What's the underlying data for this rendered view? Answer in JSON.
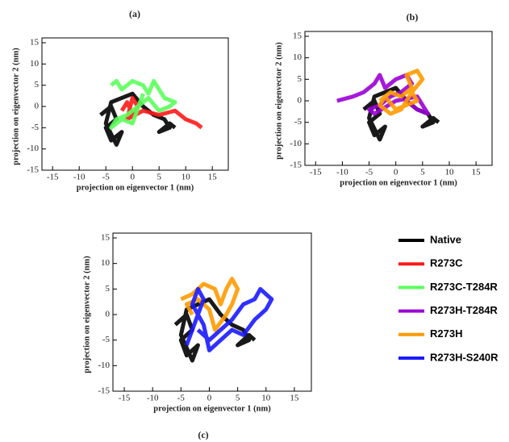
{
  "chart_data": [
    {
      "type": "line",
      "title": "(a)",
      "xlabel": "projection on eigenvector 1 (nm)",
      "ylabel": "projection on eigenvector 2 (nm)",
      "xlim": [
        -17,
        18
      ],
      "ylim": [
        -15,
        15
      ],
      "xticks": [
        -15,
        -10,
        -5,
        0,
        5,
        10,
        15
      ],
      "yticks": [
        -15,
        -10,
        -5,
        0,
        5,
        10,
        15
      ],
      "series": [
        {
          "name": "Native",
          "color": "#000000",
          "x": [
            -6,
            -4,
            -3,
            -5,
            -4,
            -2,
            -3,
            -5,
            -4,
            -2,
            0,
            2,
            4,
            6,
            7,
            5,
            7,
            8
          ],
          "values": [
            -2,
            0,
            -3,
            -5,
            -8,
            -6,
            -9,
            -4,
            1,
            2,
            3,
            0,
            -2,
            -3,
            -5,
            -6,
            -4,
            -5
          ]
        },
        {
          "name": "R273C",
          "color": "#ff1a1a",
          "x": [
            -2,
            -1,
            0,
            1,
            0,
            -1,
            2,
            5,
            8,
            10,
            12,
            13
          ],
          "values": [
            -1,
            1,
            -2,
            0,
            2,
            -3,
            -1,
            -2,
            -1,
            -3,
            -4,
            -5
          ]
        },
        {
          "name": "R273C-T284R",
          "color": "#5cff5c",
          "x": [
            -4,
            -3,
            -2,
            0,
            2,
            3,
            4,
            6,
            8,
            7,
            5,
            3,
            1,
            -1,
            -3,
            -4,
            -2,
            0,
            2
          ],
          "values": [
            5,
            6,
            4,
            6,
            5,
            3,
            6,
            2,
            1,
            0,
            -1,
            2,
            0,
            -2,
            -3,
            -5,
            -3,
            -4,
            3
          ]
        }
      ]
    },
    {
      "type": "line",
      "title": "(b)",
      "xlabel": "projection on eigenvector 1 (nm)",
      "ylabel": "projection on eigenvector 2 (nm)",
      "xlim": [
        -17,
        18
      ],
      "ylim": [
        -15,
        15
      ],
      "xticks": [
        -15,
        -10,
        -5,
        0,
        5,
        10,
        15
      ],
      "yticks": [
        -15,
        -10,
        -5,
        0,
        5,
        10,
        15
      ],
      "series": [
        {
          "name": "Native",
          "color": "#000000",
          "x": [
            -6,
            -4,
            -3,
            -5,
            -4,
            -2,
            -3,
            -5,
            -4,
            -2,
            0,
            2,
            4,
            6,
            7,
            5,
            7,
            8
          ],
          "values": [
            -2,
            0,
            -3,
            -5,
            -8,
            -6,
            -9,
            -4,
            1,
            2,
            3,
            0,
            -2,
            -3,
            -5,
            -6,
            -4,
            -5
          ]
        },
        {
          "name": "R273H-T284R",
          "color": "#9a00d6",
          "x": [
            -11,
            -8,
            -6,
            -4,
            -3,
            -2,
            0,
            2,
            3,
            1,
            -1,
            -3,
            -5,
            -4,
            0,
            4,
            5,
            6,
            4,
            2
          ],
          "values": [
            0,
            1,
            2,
            4,
            6,
            3,
            5,
            6,
            4,
            2,
            1,
            -1,
            -2,
            -3,
            0,
            1,
            -1,
            -3,
            -2,
            0
          ]
        },
        {
          "name": "R273H",
          "color": "#ff9a00",
          "x": [
            -3,
            -1,
            1,
            3,
            2,
            4,
            5,
            3,
            1,
            -1,
            -3,
            -2,
            0,
            2,
            4,
            3
          ],
          "values": [
            0,
            2,
            1,
            3,
            6,
            7,
            5,
            2,
            -2,
            -3,
            -1,
            1,
            -2,
            -1,
            0,
            2
          ]
        }
      ]
    },
    {
      "type": "line",
      "title": "(c)",
      "xlabel": "projection on eigenvector 1 (nm)",
      "ylabel": "projection on eigenvector 2 (nm)",
      "xlim": [
        -17,
        18
      ],
      "ylim": [
        -15,
        15
      ],
      "xticks": [
        -15,
        -10,
        -5,
        0,
        5,
        10,
        15
      ],
      "yticks": [
        -15,
        -10,
        -5,
        0,
        5,
        10,
        15
      ],
      "series": [
        {
          "name": "Native",
          "color": "#000000",
          "x": [
            -6,
            -4,
            -3,
            -5,
            -4,
            -2,
            -3,
            -5,
            -4,
            -2,
            0,
            2,
            4,
            6,
            7,
            5,
            7,
            8
          ],
          "values": [
            -2,
            0,
            -3,
            -5,
            -8,
            -6,
            -9,
            -4,
            1,
            2,
            3,
            0,
            -2,
            -3,
            -5,
            -6,
            -4,
            -5
          ]
        },
        {
          "name": "R273H",
          "color": "#ff9a00",
          "x": [
            -5,
            -3,
            -1,
            1,
            2,
            3,
            4,
            5,
            4,
            3,
            1,
            0,
            -2,
            -4,
            -3
          ],
          "values": [
            3,
            4,
            6,
            5,
            2,
            5,
            7,
            5,
            2,
            0,
            -3,
            1,
            3,
            2,
            0
          ]
        },
        {
          "name": "R273H-S240R",
          "color": "#1a1aff",
          "x": [
            -4,
            -3,
            -2,
            -1,
            -2,
            -3,
            -1,
            0,
            2,
            4,
            6,
            8,
            10,
            11,
            9,
            8,
            6,
            4,
            2,
            0,
            -2
          ],
          "values": [
            -6,
            -3,
            0,
            3,
            5,
            2,
            -2,
            -7,
            -5,
            -3,
            -4,
            -1,
            1,
            3,
            5,
            3,
            2,
            -1,
            -3,
            -5,
            -3
          ]
        }
      ]
    }
  ]
}
